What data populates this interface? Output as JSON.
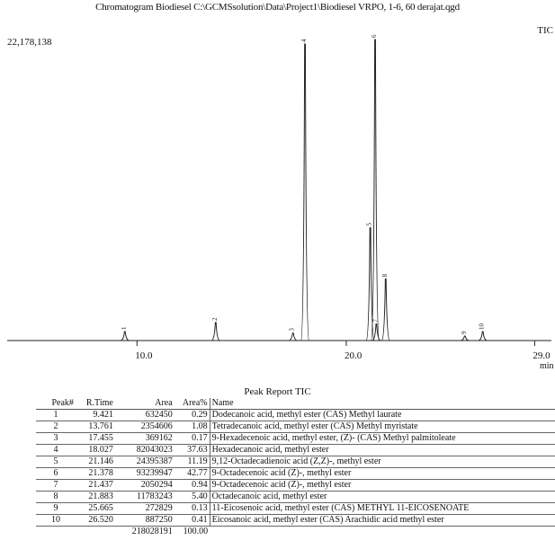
{
  "header": {
    "title": "Chromatogram Biodiesel C:\\GCMSsolution\\Data\\Project1\\Biodiesel VRPO, 1-6, 60 derajat.qgd",
    "tic_label": "TIC",
    "y_max_label": "22,178,138"
  },
  "chart_data": {
    "type": "line",
    "title": "Chromatogram Biodiesel C:\\GCMSsolution\\Data\\Project1\\Biodiesel VRPO, 1-6, 60 derajat.qgd",
    "xlabel": "min",
    "ylabel": "",
    "series_label": "TIC",
    "y_max": 22178138,
    "xlim": [
      3.8,
      29.8
    ],
    "x_ticks": [
      {
        "value": 10.0,
        "label": "10.0"
      },
      {
        "value": 20.0,
        "label": "20.0"
      },
      {
        "value": 29.0,
        "label": "29.0"
      }
    ],
    "peaks": [
      {
        "id": "1",
        "rt": 9.421,
        "height_frac": 0.03
      },
      {
        "id": "2",
        "rt": 13.761,
        "height_frac": 0.06
      },
      {
        "id": "3",
        "rt": 17.455,
        "height_frac": 0.025
      },
      {
        "id": "4",
        "rt": 18.027,
        "height_frac": 0.985
      },
      {
        "id": "5",
        "rt": 21.146,
        "height_frac": 0.375
      },
      {
        "id": "6",
        "rt": 21.378,
        "height_frac": 1.0
      },
      {
        "id": "7",
        "rt": 21.437,
        "height_frac": 0.055
      },
      {
        "id": "8",
        "rt": 21.883,
        "height_frac": 0.205
      },
      {
        "id": "9",
        "rt": 25.665,
        "height_frac": 0.015
      },
      {
        "id": "10",
        "rt": 26.52,
        "height_frac": 0.03
      }
    ],
    "peak_labels": [
      {
        "rt": 9.421,
        "label": "1"
      },
      {
        "rt": 13.761,
        "label": "2"
      },
      {
        "rt": 17.455,
        "label": "3"
      },
      {
        "rt": 18.027,
        "label": "4"
      },
      {
        "rt": 21.146,
        "label": "5"
      },
      {
        "rt": 21.378,
        "label": "6"
      },
      {
        "rt": 21.437,
        "label": "7"
      },
      {
        "rt": 21.883,
        "label": "8"
      },
      {
        "rt": 25.665,
        "label": "9"
      },
      {
        "rt": 26.52,
        "label": "10"
      }
    ],
    "grid": false,
    "legend": "none"
  },
  "report": {
    "title": "Peak Report TIC",
    "columns": {
      "peak": "Peak#",
      "rtime": "R.Time",
      "area": "Area",
      "area_pct": "Area%",
      "name": "Name"
    },
    "rows": [
      {
        "peak": "1",
        "rtime": "9.421",
        "area": "632450",
        "area_pct": "0.29",
        "name": "Dodecanoic acid, methyl ester (CAS) Methyl laurate"
      },
      {
        "peak": "2",
        "rtime": "13.761",
        "area": "2354606",
        "area_pct": "1.08",
        "name": "Tetradecanoic acid, methyl ester (CAS) Methyl myristate"
      },
      {
        "peak": "3",
        "rtime": "17.455",
        "area": "369162",
        "area_pct": "0.17",
        "name": "9-Hexadecenoic acid, methyl ester, (Z)- (CAS) Methyl palmitoleate"
      },
      {
        "peak": "4",
        "rtime": "18.027",
        "area": "82043023",
        "area_pct": "37.63",
        "name": "Hexadecanoic acid, methyl ester"
      },
      {
        "peak": "5",
        "rtime": "21.146",
        "area": "24395387",
        "area_pct": "11.19",
        "name": "9,12-Octadecadienoic acid (Z,Z)-, methyl ester"
      },
      {
        "peak": "6",
        "rtime": "21.378",
        "area": "93239947",
        "area_pct": "42.77",
        "name": "9-Octadecenoic acid (Z)-, methyl ester"
      },
      {
        "peak": "7",
        "rtime": "21.437",
        "area": "2050294",
        "area_pct": "0.94",
        "name": "9-Octadecenoic acid (Z)-, methyl ester"
      },
      {
        "peak": "8",
        "rtime": "21.883",
        "area": "11783243",
        "area_pct": "5.40",
        "name": "Octadecanoic acid, methyl ester"
      },
      {
        "peak": "9",
        "rtime": "25.665",
        "area": "272829",
        "area_pct": "0.13",
        "name": "11-Eicosenoic acid, methyl ester (CAS) METHYL 11-EICOSENOATE"
      },
      {
        "peak": "10",
        "rtime": "26.520",
        "area": "887250",
        "area_pct": "0.41",
        "name": "Eicosanoic acid, methyl ester (CAS) Arachidic acid methyl ester"
      }
    ],
    "total": {
      "area": "218028191",
      "area_pct": "100.00"
    }
  }
}
